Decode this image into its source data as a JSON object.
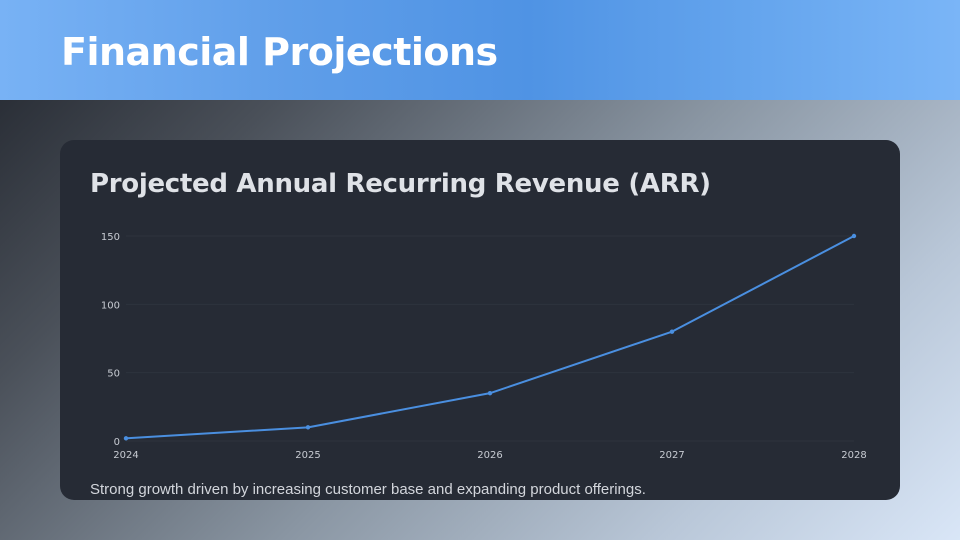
{
  "header": {
    "title": "Financial Projections"
  },
  "card": {
    "title": "Projected Annual Recurring Revenue (ARR)",
    "caption": "Strong growth driven by increasing customer base and expanding product offerings."
  },
  "colors": {
    "line": "#4a8fe0",
    "grid": "#2e333d",
    "card_bg": "#262b35",
    "header_accent": "#4f93e4"
  },
  "chart_data": {
    "type": "line",
    "title": "Projected Annual Recurring Revenue (ARR)",
    "xlabel": "",
    "ylabel": "",
    "categories": [
      "2024",
      "2025",
      "2026",
      "2027",
      "2028"
    ],
    "series": [
      {
        "name": "ARR",
        "values": [
          2,
          10,
          35,
          80,
          150
        ]
      }
    ],
    "yticks": [
      0,
      50,
      100,
      150
    ],
    "ylim": [
      0,
      150
    ],
    "grid": true,
    "legend": "none"
  }
}
